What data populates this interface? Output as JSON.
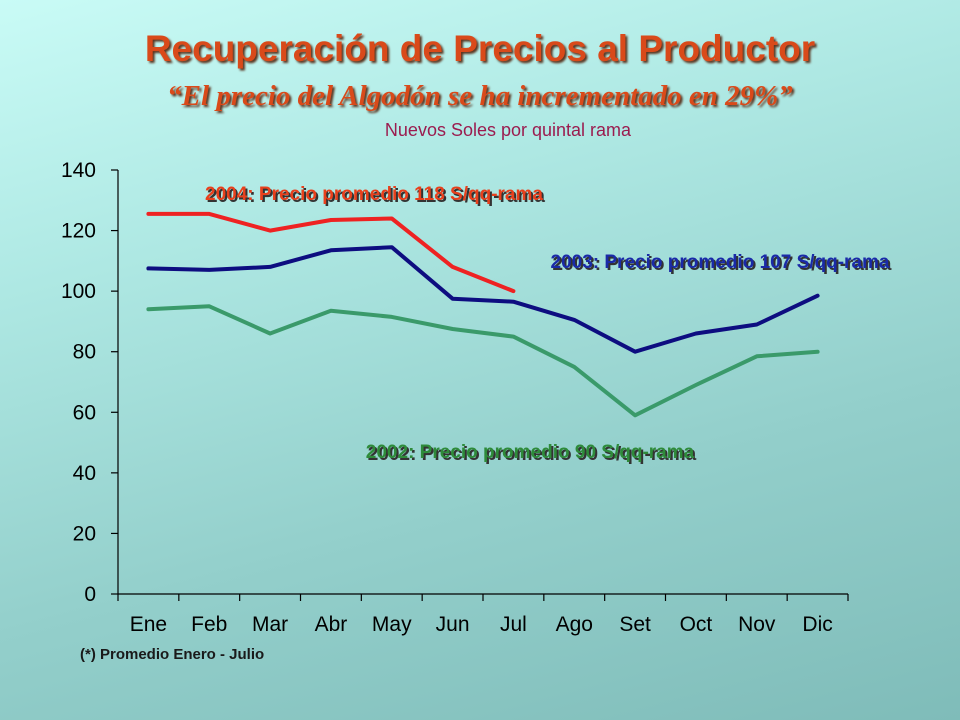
{
  "slide": {
    "title": "Recuperación de Precios al Productor",
    "subtitle": "“El precio del  Algodón se ha incrementado en 29%”",
    "units": "Nuevos Soles por quintal rama",
    "footnote": "(*) Promedio Enero - Julio"
  },
  "chart_data": {
    "type": "line",
    "title": "",
    "xlabel": "",
    "ylabel": "",
    "categories": [
      "Ene",
      "Feb",
      "Mar",
      "Abr",
      "May",
      "Jun",
      "Jul",
      "Ago",
      "Set",
      "Oct",
      "Nov",
      "Dic"
    ],
    "ylim": [
      0,
      140
    ],
    "yticks": [
      0,
      20,
      40,
      60,
      80,
      100,
      120,
      140
    ],
    "grid": false,
    "legend": "none",
    "series": [
      {
        "color": "#3a9a6a",
        "values": [
          94,
          95,
          86,
          93.5,
          91.5,
          87.5,
          85,
          75,
          59,
          69,
          78.5,
          80
        ],
        "annotation": "2002: Precio promedio 90 S/qq-rama",
        "annotation_color": "#2e8b3a"
      },
      {
        "color": "#0d0d80",
        "values": [
          107.5,
          107,
          108,
          113.5,
          114.5,
          97.5,
          96.5,
          90.5,
          80,
          86,
          89,
          98.5
        ],
        "annotation": "2003: Precio promedio 107 S/qq-rama",
        "annotation_color": "#1a2aa8"
      },
      {
        "color": "#ee2222",
        "values": [
          125.5,
          125.5,
          120,
          123.5,
          124,
          108,
          100,
          null,
          null,
          null,
          null,
          null
        ],
        "annotation": "2004: Precio promedio  118 S/qq-rama",
        "annotation_color": "#e8401c"
      }
    ]
  }
}
